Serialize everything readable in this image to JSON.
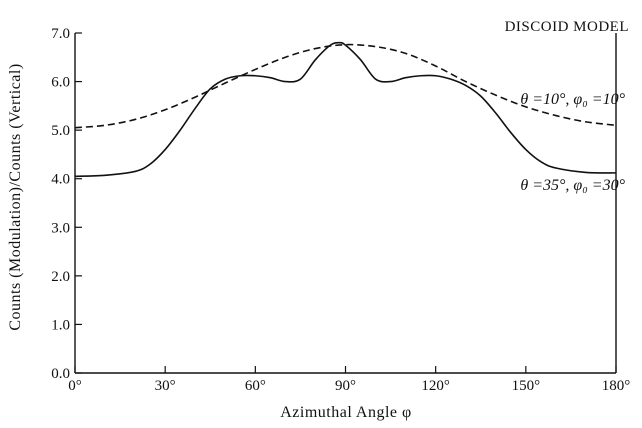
{
  "chart_data": {
    "type": "line",
    "title": "DISCOID MODEL",
    "xlabel": "Azimuthal Angle φ",
    "ylabel": "Counts (Modulation)/Counts (Vertical)",
    "xlim": [
      0,
      180
    ],
    "ylim": [
      0,
      7.0
    ],
    "x_ticks": [
      0,
      30,
      60,
      90,
      120,
      150,
      180
    ],
    "x_tick_labels": [
      "0°",
      "30°",
      "60°",
      "90°",
      "120°",
      "150°",
      "180°"
    ],
    "y_ticks": [
      0,
      1,
      2,
      3,
      4,
      5,
      6,
      7
    ],
    "y_tick_labels": [
      "0.0",
      "1.0",
      "2.0",
      "3.0",
      "4.0",
      "5.0",
      "6.0",
      "7.0"
    ],
    "grid": false,
    "legend": "none",
    "series": [
      {
        "name": "θ=10°, φ0=10°",
        "style": "dashed",
        "x": [
          0,
          10,
          20,
          30,
          40,
          50,
          60,
          70,
          80,
          90,
          100,
          110,
          120,
          130,
          140,
          150,
          160,
          170,
          180
        ],
        "y": [
          5.05,
          5.1,
          5.22,
          5.42,
          5.68,
          5.97,
          6.25,
          6.5,
          6.68,
          6.76,
          6.72,
          6.58,
          6.32,
          6.0,
          5.72,
          5.48,
          5.3,
          5.17,
          5.1
        ]
      },
      {
        "name": "θ=35°, φ0=30°",
        "style": "solid",
        "x": [
          0,
          10,
          20,
          25,
          30,
          35,
          40,
          45,
          50,
          55,
          60,
          65,
          70,
          75,
          80,
          85,
          88,
          90,
          95,
          100,
          105,
          110,
          115,
          120,
          125,
          130,
          135,
          140,
          145,
          150,
          155,
          160,
          170,
          180
        ],
        "y": [
          4.05,
          4.07,
          4.15,
          4.3,
          4.6,
          5.0,
          5.45,
          5.85,
          6.05,
          6.12,
          6.12,
          6.08,
          6.0,
          6.05,
          6.45,
          6.75,
          6.8,
          6.75,
          6.45,
          6.05,
          6.0,
          6.08,
          6.12,
          6.12,
          6.05,
          5.92,
          5.7,
          5.35,
          4.95,
          4.6,
          4.35,
          4.22,
          4.13,
          4.12
        ]
      }
    ],
    "annotations": [
      {
        "text": "θ =10°, φ₀ =10°",
        "series": 0
      },
      {
        "text": "θ =35°, φ₀ =30°",
        "series": 1
      }
    ]
  }
}
